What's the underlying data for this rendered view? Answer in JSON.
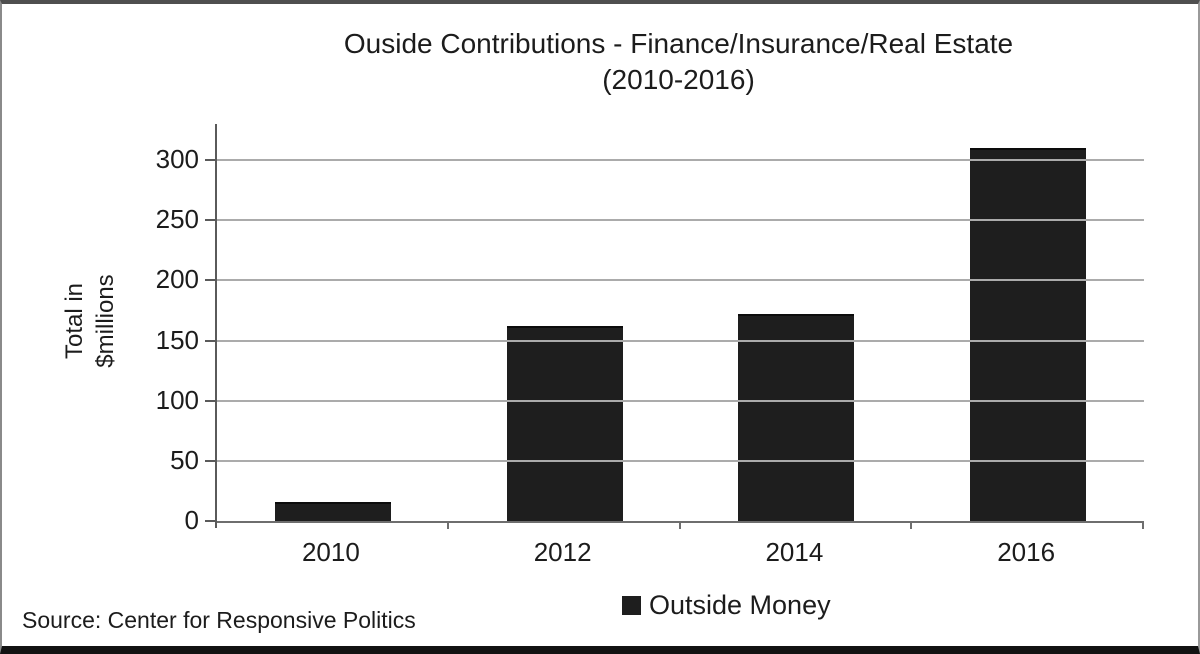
{
  "chart_data": {
    "type": "bar",
    "title": "Ouside Contributions - Finance/Insurance/Real Estate",
    "subtitle": "(2010-2016)",
    "categories": [
      "2010",
      "2012",
      "2014",
      "2016"
    ],
    "series": [
      {
        "name": "Outside Money",
        "values": [
          16,
          162,
          172,
          310
        ]
      }
    ],
    "ylabel": "Total in $millions",
    "ylabel_lines": [
      "Total in",
      "$millions"
    ],
    "yticks": [
      0,
      50,
      100,
      150,
      200,
      250,
      300
    ],
    "ylim": [
      0,
      330
    ],
    "grid": true,
    "legend_position": "bottom-center",
    "bar_color": "#1e1e1e",
    "gridline_color": "#ababab",
    "axis_color": "#5a5a5a",
    "source": "Source: Center for Responsive Politics"
  }
}
